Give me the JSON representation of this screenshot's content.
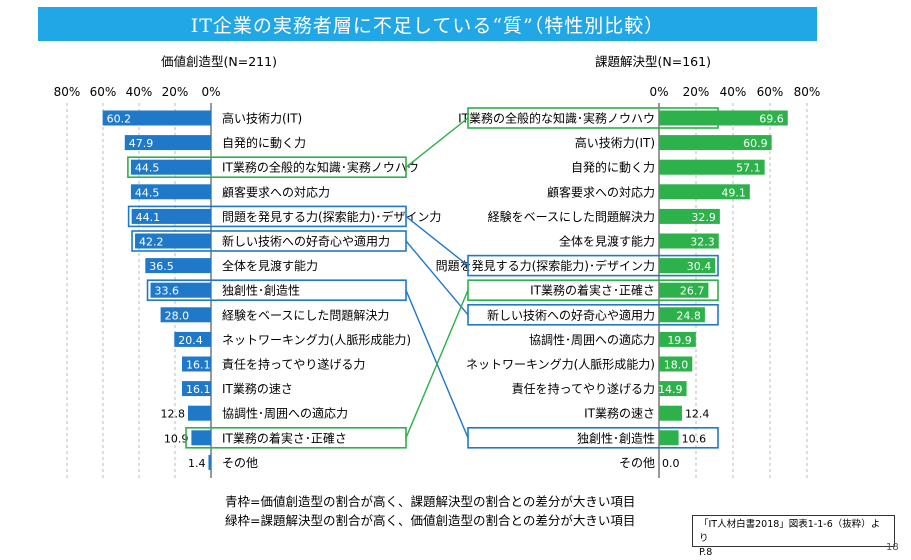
{
  "title": "IT企業の実務者層に不足している“質”（特性別比較）",
  "chart_data": [
    {
      "type": "bar",
      "orientation": "horizontal",
      "direction": "right-to-left",
      "title": "価値創造型(N=211)",
      "xlim": [
        0,
        80
      ],
      "ticks": [
        "80%",
        "60%",
        "40%",
        "20%",
        "0%"
      ],
      "tick_values": [
        80,
        60,
        40,
        20,
        0
      ],
      "categories": [
        "高い技術力(IT)",
        "自発的に動く力",
        "IT業務の全般的な知識･実務ノウハウ",
        "顧客要求への対応力",
        "問題を発見する力(探索能力)･デザイン力",
        "新しい技術への好奇心や適用力",
        "全体を見渡す能力",
        "独創性･創造性",
        "経験をベースにした問題解決力",
        "ネットワーキング力(人脈形成能力)",
        "責任を持ってやり遂げる力",
        "IT業務の速さ",
        "協調性･周囲への適応力",
        "IT業務の着実さ･正確さ",
        "その他"
      ],
      "values": [
        60.2,
        47.9,
        44.5,
        44.5,
        44.1,
        42.2,
        36.5,
        33.6,
        28.0,
        20.4,
        16.1,
        16.1,
        12.8,
        10.9,
        1.4
      ],
      "value_labels": [
        "60.2",
        "47.9",
        "44.5",
        "44.5",
        "44.1",
        "42.2",
        "36.5",
        "33.6",
        "28.0",
        "20.4",
        "16.1",
        "16.1",
        "12.8",
        "10.9",
        "1.4"
      ],
      "highlight": [
        "none",
        "none",
        "green",
        "none",
        "blue",
        "blue",
        "none",
        "blue",
        "none",
        "none",
        "none",
        "none",
        "none",
        "green",
        "none"
      ],
      "bar_color": "#1f78c8"
    },
    {
      "type": "bar",
      "orientation": "horizontal",
      "direction": "left-to-right",
      "title": "課題解決型(N=161)",
      "xlim": [
        0,
        80
      ],
      "ticks": [
        "0%",
        "20%",
        "40%",
        "60%",
        "80%"
      ],
      "tick_values": [
        0,
        20,
        40,
        60,
        80
      ],
      "categories": [
        "IT業務の全般的な知識･実務ノウハウ",
        "高い技術力(IT)",
        "自発的に動く力",
        "顧客要求への対応力",
        "経験をベースにした問題解決力",
        "全体を見渡す能力",
        "問題を発見する力(探索能力)･デザイン力",
        "IT業務の着実さ･正確さ",
        "新しい技術への好奇心や適用力",
        "協調性･周囲への適応力",
        "ネットワーキング力(人脈形成能力)",
        "責任を持ってやり遂げる力",
        "IT業務の速さ",
        "独創性･創造性",
        "その他"
      ],
      "values": [
        69.6,
        60.9,
        57.1,
        49.1,
        32.9,
        32.3,
        30.4,
        26.7,
        24.8,
        19.9,
        18.0,
        14.9,
        12.4,
        10.6,
        0.0
      ],
      "value_labels": [
        "69.6",
        "60.9",
        "57.1",
        "49.1",
        "32.9",
        "32.3",
        "30.4",
        "26.7",
        "24.8",
        "19.9",
        "18.0",
        "14.9",
        "12.4",
        "10.6",
        "0.0"
      ],
      "highlight": [
        "green",
        "none",
        "none",
        "none",
        "none",
        "none",
        "blue",
        "green",
        "blue",
        "none",
        "none",
        "none",
        "none",
        "blue",
        "none"
      ],
      "bar_color": "#2db14a"
    }
  ],
  "colors": {
    "blue_frame": "#1f78c8",
    "green_frame": "#2db14a",
    "title_bg": "#22a7e6"
  },
  "notes": [
    "青枠=価値創造型の割合が高く、課題解決型の割合との差分が大きい項目",
    "緑枠=課題解決型の割合が高く、価値創造型の割合との差分が大きい項目"
  ],
  "source": {
    "line1": "「IT人材白書2018」図表1-1-6（抜粋）より",
    "line2": "P.8"
  },
  "page_number": "18"
}
